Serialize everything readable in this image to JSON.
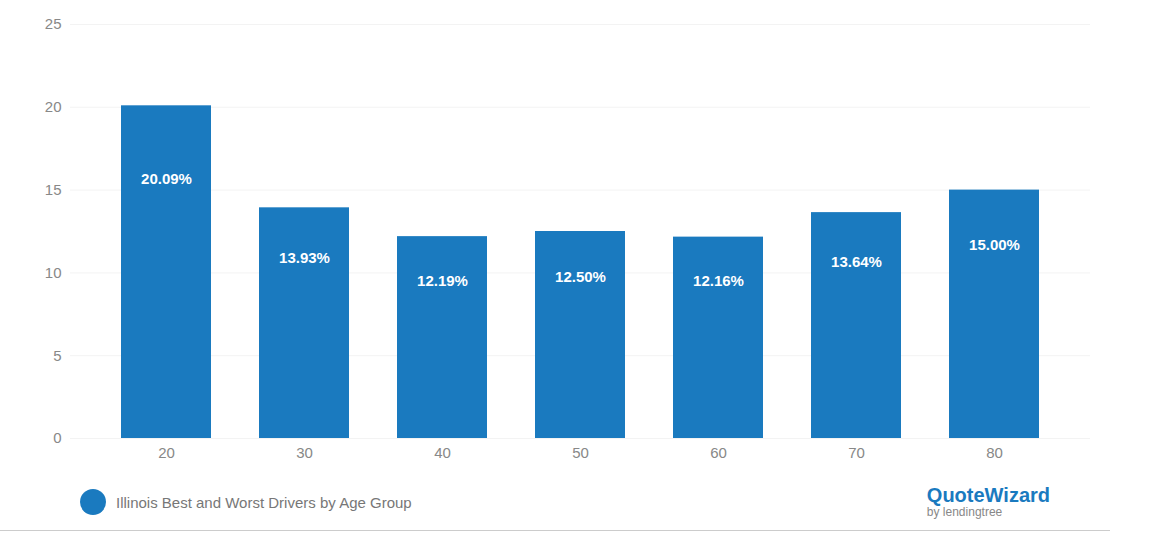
{
  "chart_data": {
    "type": "bar",
    "categories": [
      20,
      30,
      40,
      50,
      60,
      70,
      80
    ],
    "series": [
      {
        "name": "Illinois Best and Worst Drivers by Age Group",
        "color": "#1a7abf",
        "values": [
          20.09,
          13.93,
          12.19,
          12.5,
          12.16,
          13.64,
          15.0
        ],
        "value_labels": [
          "20.09%",
          "13.93%",
          "12.19%",
          "12.50%",
          "12.16%",
          "13.64%",
          "15.00%"
        ]
      }
    ],
    "ylim": [
      0,
      25
    ],
    "yticks": [
      0,
      5,
      10,
      15,
      20,
      25
    ],
    "grid": true,
    "legend": "bottom left",
    "data_labels": true,
    "annotations": [
      "QuoteWizard",
      "by lendingtree"
    ]
  }
}
